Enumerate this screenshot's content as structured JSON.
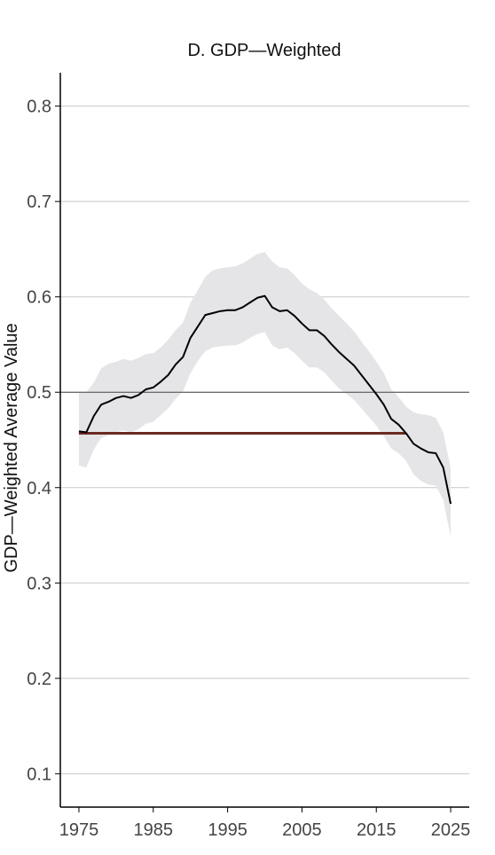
{
  "chart_data": {
    "type": "line",
    "title": "D. GDP—Weighted",
    "xlabel": "",
    "ylabel": "GDP—Weighted Average Value",
    "xlim": [
      1972.5,
      2027.5
    ],
    "ylim": [
      0.065,
      0.835
    ],
    "xticks": [
      1975,
      1985,
      1995,
      2005,
      2015,
      2025
    ],
    "yticks": [
      0.1,
      0.2,
      0.3,
      0.4,
      0.5,
      0.6,
      0.7,
      0.8
    ],
    "ytick_labels": [
      "0.1",
      "0.2",
      "0.3",
      "0.4",
      "0.5",
      "0.6",
      "0.7",
      "0.8"
    ],
    "grid": "horizontal",
    "x": [
      1975,
      1976,
      1977,
      1978,
      1979,
      1980,
      1981,
      1982,
      1983,
      1984,
      1985,
      1986,
      1987,
      1988,
      1989,
      1990,
      1991,
      1992,
      1993,
      1994,
      1995,
      1996,
      1997,
      1998,
      1999,
      2000,
      2001,
      2002,
      2003,
      2004,
      2005,
      2006,
      2007,
      2008,
      2009,
      2010,
      2011,
      2012,
      2013,
      2014,
      2015,
      2016,
      2017,
      2018,
      2019,
      2020,
      2021,
      2022,
      2023,
      2024,
      2025
    ],
    "series": [
      {
        "type": "line",
        "color": "#000000",
        "values": [
          0.459,
          0.458,
          0.475,
          0.487,
          0.49,
          0.494,
          0.496,
          0.494,
          0.497,
          0.503,
          0.505,
          0.511,
          0.518,
          0.529,
          0.537,
          0.557,
          0.569,
          0.581,
          0.583,
          0.585,
          0.586,
          0.586,
          0.589,
          0.594,
          0.599,
          0.601,
          0.589,
          0.585,
          0.586,
          0.58,
          0.572,
          0.565,
          0.565,
          0.559,
          0.55,
          0.542,
          0.535,
          0.528,
          0.518,
          0.508,
          0.498,
          0.487,
          0.472,
          0.466,
          0.457,
          0.446,
          0.441,
          0.437,
          0.436,
          0.421,
          0.383
        ]
      },
      {
        "type": "band",
        "color": "#e5e5e7",
        "upper": [
          0.5,
          0.5,
          0.51,
          0.525,
          0.53,
          0.532,
          0.535,
          0.533,
          0.536,
          0.54,
          0.541,
          0.547,
          0.555,
          0.565,
          0.573,
          0.594,
          0.607,
          0.621,
          0.628,
          0.63,
          0.631,
          0.632,
          0.635,
          0.64,
          0.645,
          0.647,
          0.637,
          0.631,
          0.63,
          0.623,
          0.614,
          0.608,
          0.604,
          0.597,
          0.588,
          0.58,
          0.572,
          0.564,
          0.553,
          0.543,
          0.532,
          0.52,
          0.503,
          0.495,
          0.485,
          0.479,
          0.477,
          0.476,
          0.473,
          0.458,
          0.42
        ],
        "lower": [
          0.423,
          0.421,
          0.44,
          0.452,
          0.455,
          0.458,
          0.46,
          0.458,
          0.461,
          0.467,
          0.469,
          0.476,
          0.483,
          0.493,
          0.501,
          0.52,
          0.533,
          0.543,
          0.547,
          0.548,
          0.549,
          0.549,
          0.552,
          0.557,
          0.561,
          0.563,
          0.549,
          0.545,
          0.547,
          0.541,
          0.533,
          0.526,
          0.526,
          0.521,
          0.512,
          0.504,
          0.498,
          0.492,
          0.483,
          0.474,
          0.465,
          0.454,
          0.441,
          0.436,
          0.428,
          0.414,
          0.407,
          0.403,
          0.402,
          0.387,
          0.348
        ]
      },
      {
        "type": "hline",
        "color": "#444444",
        "y": 0.5,
        "x_range": [
          1972.5,
          2027.5
        ]
      },
      {
        "type": "hline",
        "color": "#6b2a22",
        "y": 0.457,
        "x_range": [
          1975,
          2019
        ]
      }
    ]
  }
}
